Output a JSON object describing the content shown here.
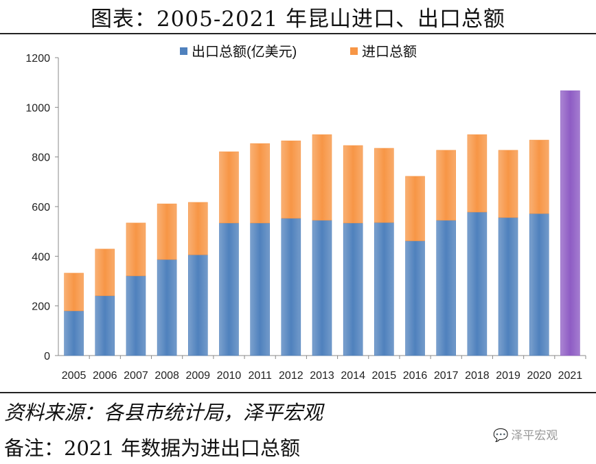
{
  "title": "图表：2005-2021 年昆山进口、出口总额",
  "source": "资料来源：各县市统计局，泽平宏观",
  "note": "备注：2021 年数据为进出口总额",
  "watermark": "泽平宏观",
  "chart_data": {
    "type": "bar",
    "stacked": true,
    "categories": [
      "2005",
      "2006",
      "2007",
      "2008",
      "2009",
      "2010",
      "2011",
      "2012",
      "2013",
      "2014",
      "2015",
      "2016",
      "2017",
      "2018",
      "2019",
      "2020",
      "2021"
    ],
    "series": [
      {
        "name": "出口总额(亿美元)",
        "color": "#4F81BD",
        "values": [
          180,
          241,
          321,
          387,
          406,
          534,
          534,
          553,
          545,
          534,
          536,
          462,
          545,
          578,
          556,
          572,
          null
        ]
      },
      {
        "name": "进口总额",
        "color": "#F79646",
        "values": [
          152,
          188,
          213,
          224,
          211,
          287,
          320,
          312,
          345,
          312,
          299,
          260,
          282,
          312,
          271,
          296,
          null
        ]
      },
      {
        "color": "#8E5CC4",
        "values": [
          null,
          null,
          null,
          null,
          null,
          null,
          null,
          null,
          null,
          null,
          null,
          null,
          null,
          null,
          null,
          null,
          1067
        ]
      }
    ],
    "ylim": [
      0,
      1200
    ],
    "yticks": [
      0,
      200,
      400,
      600,
      800,
      1000,
      1200
    ],
    "grid": false,
    "legend": "top"
  }
}
